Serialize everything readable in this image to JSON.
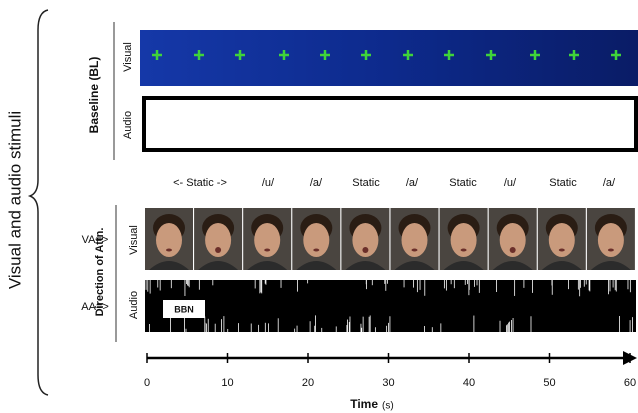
{
  "side_label": "Visual and audio stimuli",
  "baseline": {
    "title": "Baseline (BL)",
    "visual_label": "Visual",
    "audio_label": "Audio"
  },
  "segments": [
    "<- Static ->",
    "/u/",
    "/a/",
    "Static",
    "/a/",
    "Static",
    "/u/",
    "Static",
    "/a/"
  ],
  "attention": {
    "title": "Direction of Attn.",
    "va": "VA=>",
    "visual_label": "Visual",
    "aa": "AA=>",
    "audio_label": "Audio",
    "noise_label": "BBN"
  },
  "time_axis": {
    "ticks": [
      "0",
      "10",
      "20",
      "30",
      "40",
      "50",
      "60"
    ],
    "label": "Time",
    "unit": "(s)"
  }
}
